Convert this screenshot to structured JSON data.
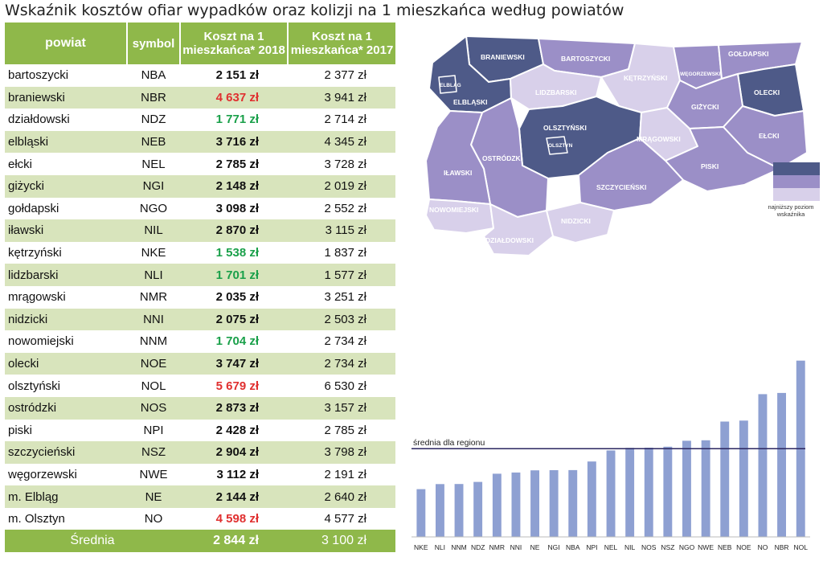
{
  "title": "Wskaźnik kosztów ofiar wypadków oraz kolizji na 1 mieszkańca według powiatów",
  "table": {
    "headers": {
      "powiat": "powiat",
      "symbol": "symbol",
      "cost2018": "Koszt na 1 mieszkańca* 2018",
      "cost2017": "Koszt na 1 mieszkańca* 2017"
    },
    "rows": [
      {
        "name": "bartoszycki",
        "symbol": "NBA",
        "v2018": "2 151 zł",
        "v2017": "2 377 zł",
        "flag": ""
      },
      {
        "name": "braniewski",
        "symbol": "NBR",
        "v2018": "4 637 zł",
        "v2017": "3 941 zł",
        "flag": "high"
      },
      {
        "name": "działdowski",
        "symbol": "NDZ",
        "v2018": "1 771 zł",
        "v2017": "2 714 zł",
        "flag": "low"
      },
      {
        "name": "elbląski",
        "symbol": "NEB",
        "v2018": "3 716 zł",
        "v2017": "4 345 zł",
        "flag": ""
      },
      {
        "name": "ełcki",
        "symbol": "NEL",
        "v2018": "2 785 zł",
        "v2017": "3 728 zł",
        "flag": ""
      },
      {
        "name": "giżycki",
        "symbol": "NGI",
        "v2018": "2 148 zł",
        "v2017": "2 019 zł",
        "flag": ""
      },
      {
        "name": "gołdapski",
        "symbol": "NGO",
        "v2018": "3 098 zł",
        "v2017": "2 552 zł",
        "flag": ""
      },
      {
        "name": "iławski",
        "symbol": "NIL",
        "v2018": "2 870 zł",
        "v2017": "3 115 zł",
        "flag": ""
      },
      {
        "name": "kętrzyński",
        "symbol": "NKE",
        "v2018": "1 538 zł",
        "v2017": "1 837 zł",
        "flag": "low"
      },
      {
        "name": "lidzbarski",
        "symbol": "NLI",
        "v2018": "1 701 zł",
        "v2017": "1 577 zł",
        "flag": "low"
      },
      {
        "name": "mrągowski",
        "symbol": "NMR",
        "v2018": "2 035 zł",
        "v2017": "3 251 zł",
        "flag": ""
      },
      {
        "name": "nidzicki",
        "symbol": "NNI",
        "v2018": "2 075 zł",
        "v2017": "2 503 zł",
        "flag": ""
      },
      {
        "name": "nowomiejski",
        "symbol": "NNM",
        "v2018": "1 704 zł",
        "v2017": "2 734 zł",
        "flag": "low"
      },
      {
        "name": "olecki",
        "symbol": "NOE",
        "v2018": "3 747 zł",
        "v2017": "2 734 zł",
        "flag": ""
      },
      {
        "name": "olsztyński",
        "symbol": "NOL",
        "v2018": "5 679 zł",
        "v2017": "6 530 zł",
        "flag": "high"
      },
      {
        "name": "ostródzki",
        "symbol": "NOS",
        "v2018": "2 873 zł",
        "v2017": "3 157 zł",
        "flag": ""
      },
      {
        "name": "piski",
        "symbol": "NPI",
        "v2018": "2 428 zł",
        "v2017": "2 785 zł",
        "flag": ""
      },
      {
        "name": "szczycieński",
        "symbol": "NSZ",
        "v2018": "2 904 zł",
        "v2017": "3 798 zł",
        "flag": ""
      },
      {
        "name": "węgorzewski",
        "symbol": "NWE",
        "v2018": "3 112 zł",
        "v2017": "2 191 zł",
        "flag": ""
      },
      {
        "name": "m. Elbląg",
        "symbol": "NE",
        "v2018": "2 144 zł",
        "v2017": "2 640 zł",
        "flag": ""
      },
      {
        "name": "m. Olsztyn",
        "symbol": "NO",
        "v2018": "4 598 zł",
        "v2017": "4 577 zł",
        "flag": "high"
      }
    ],
    "footer": {
      "label": "Średnia",
      "v2018": "2 844 zł",
      "v2017": "3 100 zł"
    }
  },
  "map": {
    "labels": {
      "braniewski": "BRANIEWSKI",
      "bartoszycki": "BARTOSZYCKI",
      "goldapski": "GOŁDAPSKI",
      "wegorzewski": "WĘGORZEWSKI",
      "ketrzynski": "KĘTRZYŃSKI",
      "lidzbarski": "LIDZBARSKI",
      "elblag": "ELBLĄG",
      "elblaski": "ELBLĄSKI",
      "olecki": "OLECKI",
      "gizycki": "GIŻYCKI",
      "olsztynski": "OLSZTYŃSKI",
      "olsztyn": "OLSZTYN",
      "mragowski": "MRĄGOWSKI",
      "elcki": "EŁCKI",
      "ostrodzki": "OSTRÓDZKI",
      "ilawski": "IŁAWSKI",
      "piski": "PISKI",
      "szczycienski": "SZCZYCIEŃSKI",
      "nowomiejski": "NOWOMIEJSKI",
      "nidzicki": "NIDZICKI",
      "dzialdowski": "DZIAŁDOWSKI"
    },
    "colors": {
      "dark": "#4e5a88",
      "medium": "#9b8fc7",
      "light": "#d8d0ea"
    },
    "legend": {
      "swatches": [
        "#4e5a88",
        "#9b8fc7",
        "#d8d0ea"
      ],
      "note": "najniższy poziom wskaźnika"
    }
  },
  "chart_data": {
    "type": "bar",
    "title": "",
    "xlabel": "",
    "ylabel": "",
    "categories": [
      "NKE",
      "NLI",
      "NNM",
      "NDZ",
      "NMR",
      "NNI",
      "NE",
      "NGI",
      "NBA",
      "NPI",
      "NEL",
      "NIL",
      "NOS",
      "NSZ",
      "NGO",
      "NWE",
      "NEB",
      "NOE",
      "NO",
      "NBR",
      "NOL"
    ],
    "values": [
      1538,
      1701,
      1704,
      1771,
      2035,
      2075,
      2144,
      2148,
      2151,
      2428,
      2785,
      2870,
      2873,
      2904,
      3098,
      3112,
      3716,
      3747,
      4598,
      4637,
      5679
    ],
    "reference_line": {
      "label": "średnia dla regionu",
      "value": 2844
    },
    "ylim": [
      0,
      5800
    ],
    "grid": false,
    "bar_color": "#8ea0d2",
    "line_color": "#2b2660"
  }
}
